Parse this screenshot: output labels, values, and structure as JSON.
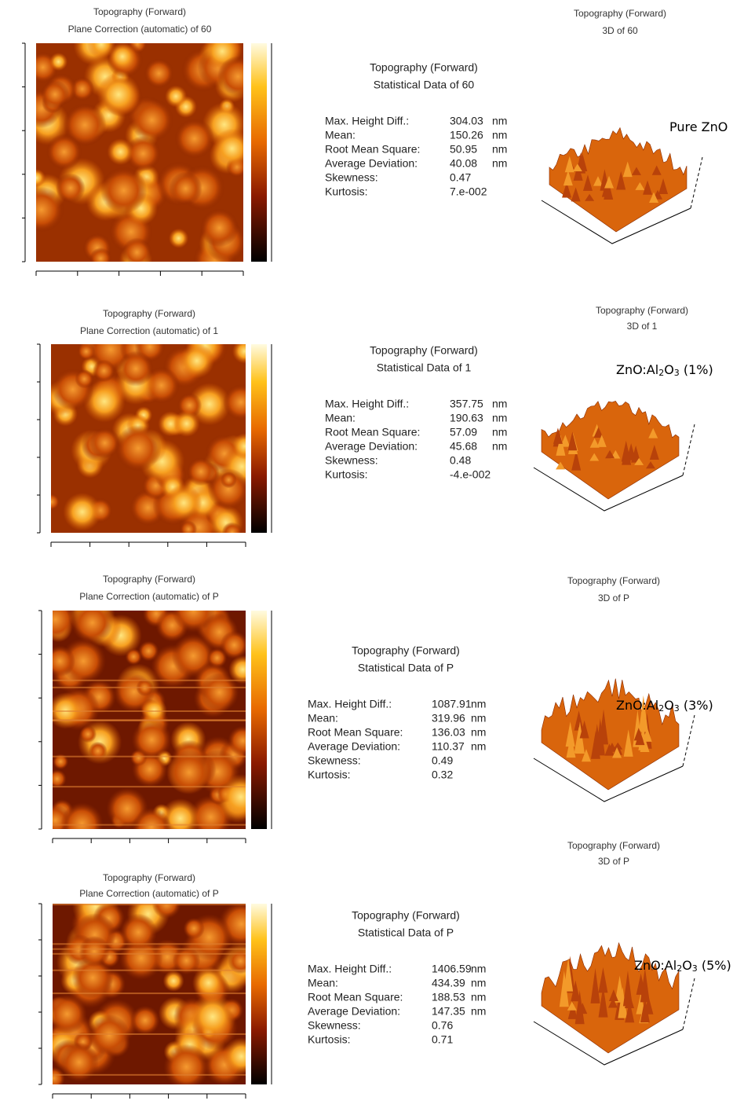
{
  "panels": [
    {
      "image_title": [
        "Topography (Forward)",
        "Plane Correction (automatic) of 60"
      ],
      "view_title": [
        "Topography (Forward)",
        "3D of 60"
      ],
      "stats_title": [
        "Topography (Forward)",
        "Statistical Data of 60"
      ],
      "stats": [
        {
          "label": "Max. Height Diff.:",
          "value": "304.03",
          "unit": "nm"
        },
        {
          "label": "Mean:",
          "value": "150.26",
          "unit": "nm"
        },
        {
          "label": "Root Mean Square:",
          "value": "50.95",
          "unit": "nm"
        },
        {
          "label": "Average Deviation:",
          "value": "40.08",
          "unit": "nm"
        },
        {
          "label": "Skewness:",
          "value": "0.47"
        },
        {
          "label": "Kurtosis:",
          "value": "7.e-002"
        }
      ],
      "sample": [
        "Pure ZnO"
      ]
    },
    {
      "image_title": [
        "Topography (Forward)",
        "Plane Correction (automatic) of 1"
      ],
      "view_title": [
        "Topography (Forward)",
        "3D of 1"
      ],
      "stats_title": [
        "Topography (Forward)",
        "Statistical Data of 1"
      ],
      "stats": [
        {
          "label": "Max. Height Diff.:",
          "value": "357.75",
          "unit": "nm"
        },
        {
          "label": "Mean:",
          "value": "190.63",
          "unit": "nm"
        },
        {
          "label": "Root Mean Square:",
          "value": "57.09",
          "unit": "nm"
        },
        {
          "label": "Average Deviation:",
          "value": "45.68",
          "unit": "nm"
        },
        {
          "label": "Skewness:",
          "value": "0.48"
        },
        {
          "label": "Kurtosis:",
          "value": "-4.e-002"
        }
      ],
      "sample": [
        "ZnO:Al",
        "2",
        "O",
        "3",
        " (1%)"
      ]
    },
    {
      "image_title": [
        "Topography (Forward)",
        "Plane Correction (automatic) of P"
      ],
      "view_title": [
        "Topography (Forward)",
        "3D of P"
      ],
      "stats_title": [
        "Topography (Forward)",
        "Statistical Data of P"
      ],
      "stats": [
        {
          "label": "Max. Height Diff.:",
          "value": "1087.91",
          "unit": "nm"
        },
        {
          "label": "Mean:",
          "value": "319.96",
          "unit": "nm"
        },
        {
          "label": "Root Mean Square:",
          "value": "136.03",
          "unit": "nm"
        },
        {
          "label": "Average Deviation:",
          "value": "110.37",
          "unit": "nm"
        },
        {
          "label": "Skewness:",
          "value": "0.49"
        },
        {
          "label": "Kurtosis:",
          "value": "0.32"
        }
      ],
      "sample": [
        "ZnO:Al",
        "2",
        "O",
        "3",
        " (3%)"
      ]
    },
    {
      "image_title": [
        "Topography (Forward)",
        "Plane Correction (automatic) of P"
      ],
      "view_title": [
        "Topography (Forward)",
        "3D of P"
      ],
      "stats_title": [
        "Topography (Forward)",
        "Statistical Data of P"
      ],
      "stats": [
        {
          "label": "Max. Height Diff.:",
          "value": "1406.59",
          "unit": "nm"
        },
        {
          "label": "Mean:",
          "value": "434.39",
          "unit": "nm"
        },
        {
          "label": "Root Mean Square:",
          "value": "188.53",
          "unit": "nm"
        },
        {
          "label": "Average Deviation:",
          "value": "147.35",
          "unit": "nm"
        },
        {
          "label": "Skewness:",
          "value": "0.76"
        },
        {
          "label": "Kurtosis:",
          "value": "0.71"
        }
      ],
      "sample": [
        "ZnO:Al",
        "2",
        "O",
        "3",
        " (5%)"
      ]
    }
  ]
}
